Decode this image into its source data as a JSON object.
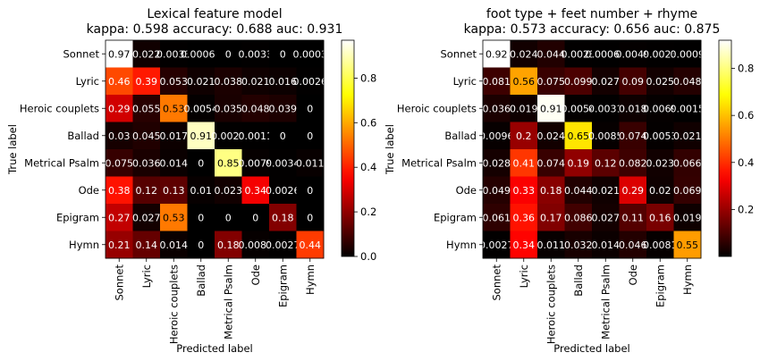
{
  "chart_data": [
    {
      "type": "heatmap",
      "title": "Lexical feature model",
      "subtitle": "kappa: 0.598 accuracy: 0.688 auc: 0.931",
      "xlabel": "Predicted label",
      "ylabel": "True label",
      "x_categories": [
        "Sonnet",
        "Lyric",
        "Heroic couplets",
        "Ballad",
        "Metrical Psalm",
        "Ode",
        "Epigram",
        "Hymn"
      ],
      "y_categories": [
        "Sonnet",
        "Lyric",
        "Heroic couplets",
        "Ballad",
        "Metrical Psalm",
        "Ode",
        "Epigram",
        "Hymn"
      ],
      "cell_labels": [
        [
          "0.97",
          "0.022",
          "0.0033",
          "0.00066",
          "0",
          "0.0033",
          "0",
          "0.0003"
        ],
        [
          "0.46",
          "0.39",
          "0.053",
          "0.021",
          "0.038",
          "0.021",
          "0.016",
          "0.0026"
        ],
        [
          "0.29",
          "0.055",
          "0.53",
          "0.0054",
          "0.035",
          "0.048",
          "0.039",
          "0"
        ],
        [
          "0.03",
          "0.045",
          "0.017",
          "0.91",
          "0.0021",
          "0.0011",
          "0",
          "0"
        ],
        [
          "0.075",
          "0.036",
          "0.014",
          "0",
          "0.85",
          "0.0079",
          "0.0034",
          "0.011"
        ],
        [
          "0.38",
          "0.12",
          "0.13",
          "0.01",
          "0.023",
          "0.34",
          "0.0026",
          "0"
        ],
        [
          "0.27",
          "0.027",
          "0.53",
          "0",
          "0",
          "0",
          "0.18",
          "0"
        ],
        [
          "0.21",
          "0.14",
          "0.014",
          "0",
          "0.18",
          "0.0081",
          "0.0027",
          "0.44"
        ]
      ],
      "vmin": 0,
      "vmax": 0.97,
      "colormap": "hot",
      "colorbar_ticks": [
        "0.0",
        "0.2",
        "0.4",
        "0.6",
        "0.8"
      ]
    },
    {
      "type": "heatmap",
      "title": "foot type + feet number + rhyme",
      "subtitle": "kappa: 0.573 accuracy: 0.656 auc: 0.875",
      "xlabel": "Predicted label",
      "ylabel": "True label",
      "x_categories": [
        "Sonnet",
        "Lyric",
        "Heroic couplets",
        "Ballad",
        "Metrical Psalm",
        "Ode",
        "Epigram",
        "Hymn"
      ],
      "y_categories": [
        "Sonnet",
        "Lyric",
        "Heroic couplets",
        "Ballad",
        "Metrical Psalm",
        "Ode",
        "Epigram",
        "Hymn"
      ],
      "cell_labels": [
        [
          "0.92",
          "0.024",
          "0.044",
          "0.0023",
          "0.00066",
          "0.0049",
          "0.0023",
          "0.0009"
        ],
        [
          "0.081",
          "0.56",
          "0.075",
          "0.099",
          "0.027",
          "0.09",
          "0.025",
          "0.048"
        ],
        [
          "0.036",
          "0.019",
          "0.91",
          "0.0054",
          "0.0031",
          "0.018",
          "0.0069",
          "0.0015"
        ],
        [
          "0.0096",
          "0.2",
          "0.024",
          "0.65",
          "0.0085",
          "0.074",
          "0.0053",
          "0.021"
        ],
        [
          "0.028",
          "0.41",
          "0.074",
          "0.19",
          "0.12",
          "0.082",
          "0.023",
          "0.066"
        ],
        [
          "0.049",
          "0.33",
          "0.18",
          "0.044",
          "0.021",
          "0.29",
          "0.02",
          "0.069"
        ],
        [
          "0.061",
          "0.36",
          "0.17",
          "0.086",
          "0.027",
          "0.11",
          "0.16",
          "0.019"
        ],
        [
          "0.0027",
          "0.34",
          "0.011",
          "0.032",
          "0.014",
          "0.046",
          "0.0081",
          "0.55"
        ]
      ],
      "vmin": 0,
      "vmax": 0.92,
      "colormap": "hot",
      "colorbar_ticks": [
        "0.2",
        "0.4",
        "0.6",
        "0.8"
      ]
    }
  ]
}
